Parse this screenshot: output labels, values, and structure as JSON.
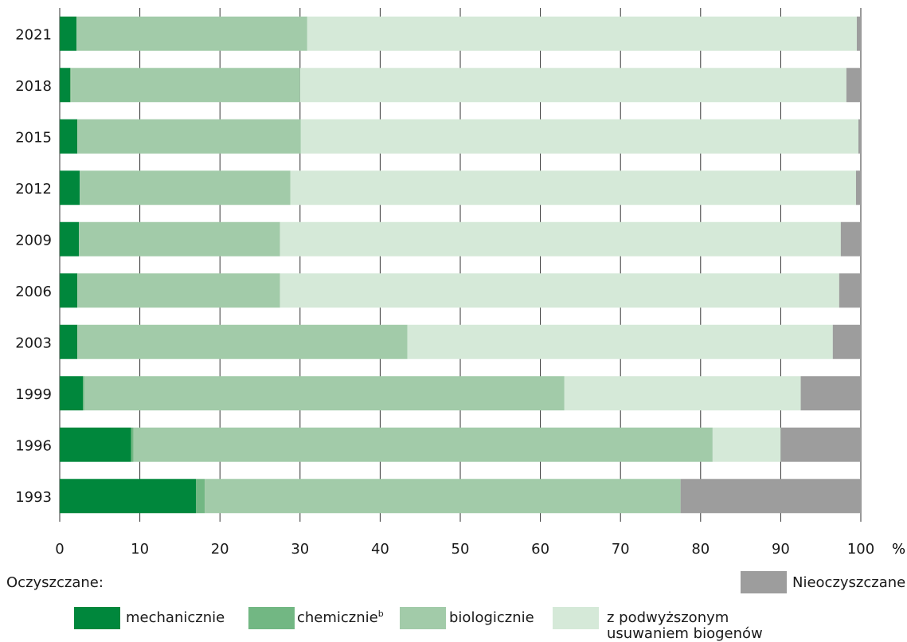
{
  "chart_data": {
    "type": "bar",
    "orientation": "horizontal",
    "stacked": true,
    "categories": [
      "1993",
      "1996",
      "1999",
      "2003",
      "2006",
      "2009",
      "2012",
      "2015",
      "2018",
      "2021"
    ],
    "series": [
      {
        "name": "mechanicznie",
        "color": "#00873c",
        "values": [
          17.0,
          8.9,
          2.9,
          2.2,
          2.2,
          2.4,
          2.5,
          2.2,
          1.3,
          2.1
        ]
      },
      {
        "name": "chemicznie",
        "color": "#72b783",
        "values": [
          1.1,
          0.3,
          0.2,
          0.0,
          0.0,
          0.0,
          0.0,
          0.0,
          0.1,
          0.0
        ]
      },
      {
        "name": "biologicznie",
        "color": "#a2cba9",
        "values": [
          59.4,
          72.3,
          59.9,
          41.2,
          25.3,
          25.1,
          26.3,
          27.9,
          28.6,
          28.8
        ]
      },
      {
        "name": "z podwyższonym usuwaniem biogenów",
        "color": "#d5e9d8",
        "values": [
          0.0,
          8.5,
          29.5,
          53.1,
          69.8,
          70.0,
          70.6,
          69.6,
          68.2,
          68.6
        ]
      },
      {
        "name": "Nieoczyszczane",
        "color": "#9d9d9d",
        "values": [
          22.5,
          10.0,
          7.5,
          3.5,
          2.7,
          2.5,
          0.6,
          0.3,
          1.8,
          0.5
        ]
      }
    ],
    "xlim": [
      0,
      100
    ],
    "x_ticks": [
      "0",
      "10",
      "20",
      "30",
      "40",
      "50",
      "60",
      "70",
      "80",
      "90",
      "100"
    ],
    "x_unit": "%",
    "grid": "vertical",
    "legend": {
      "group_title": "Oczyszczane:",
      "chemicznie_superscript": "b"
    }
  }
}
